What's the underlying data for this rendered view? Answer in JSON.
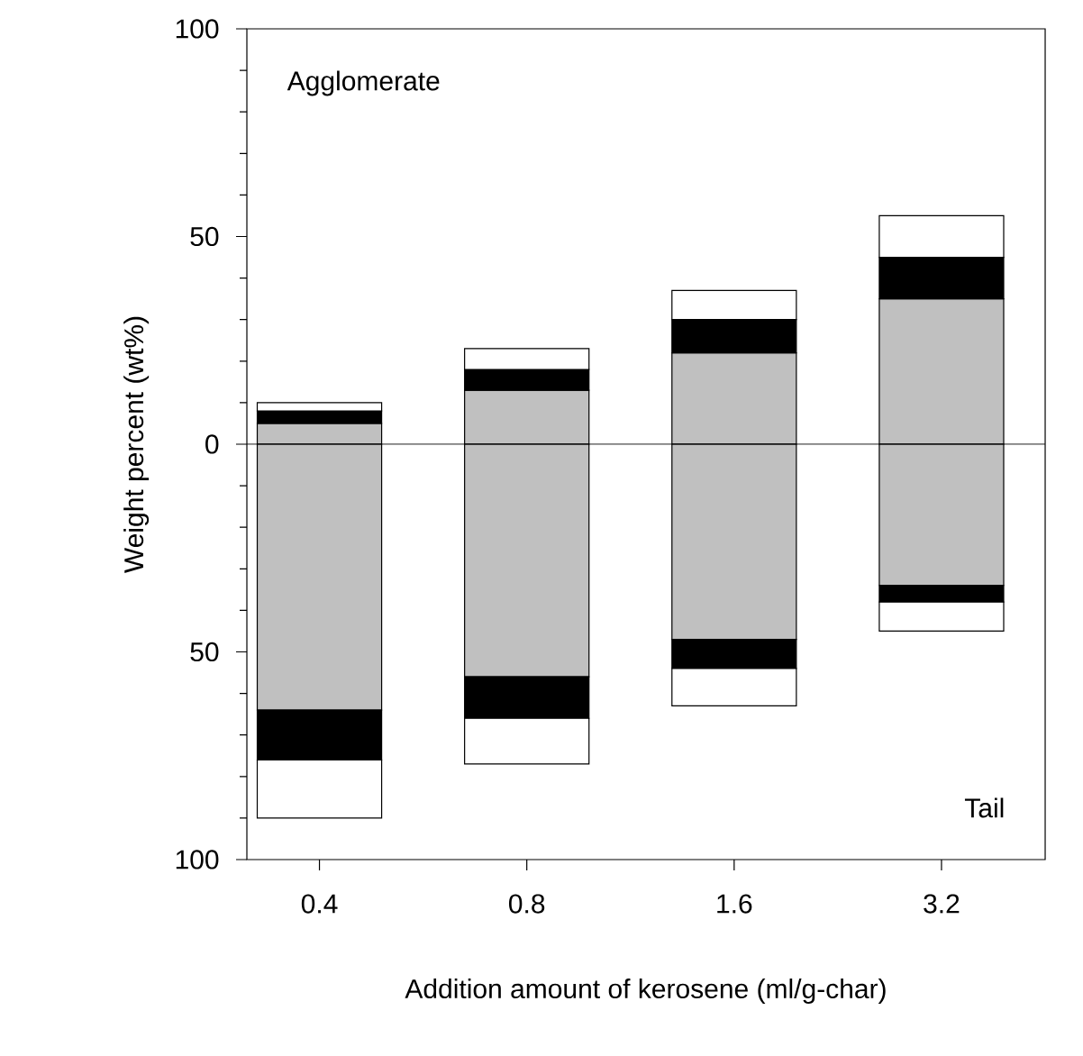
{
  "chart_data": {
    "type": "bar",
    "stacked": true,
    "xlabel": "Addition amount of kerosene (ml/g-char)",
    "ylabel": "Weight percent (wt%)",
    "categories": [
      "0.4",
      "0.8",
      "1.6",
      "3.2"
    ],
    "series": [
      {
        "color": "#c0c0c0",
        "values": [
          5,
          13,
          22,
          35
        ]
      },
      {
        "color": "#000000",
        "values": [
          3,
          5,
          8,
          10
        ]
      },
      {
        "color": "#ffffff",
        "values": [
          2,
          5,
          7,
          10
        ]
      },
      {
        "color": "#c0c0c0",
        "values": [
          -64,
          -56,
          -47,
          -34
        ]
      },
      {
        "color": "#000000",
        "values": [
          -12,
          -10,
          -7,
          -4
        ]
      },
      {
        "color": "#ffffff",
        "values": [
          -14,
          -11,
          -9,
          -7
        ]
      }
    ],
    "ylim": [
      -100,
      100
    ],
    "yticks": [
      {
        "value": -100,
        "label": "100"
      },
      {
        "value": -50,
        "label": "50"
      },
      0,
      50,
      100
    ],
    "ref_lines": [
      {
        "axis": "y",
        "value": 0
      }
    ],
    "annotations": [
      "Agglomerate",
      "Tail"
    ]
  }
}
